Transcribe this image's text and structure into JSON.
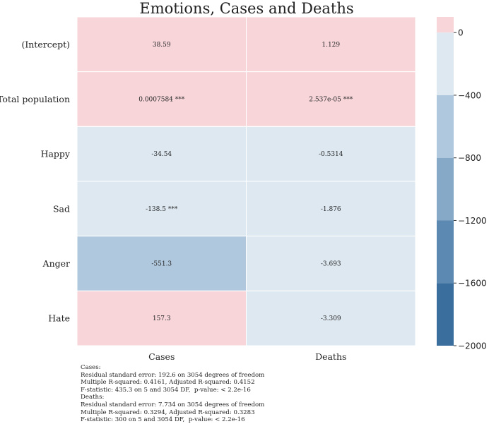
{
  "chart_data": {
    "type": "heatmap",
    "title": "Emotions, Cases and Deaths",
    "columns": [
      "Cases",
      "Deaths"
    ],
    "rows": [
      "(Intercept)",
      "Total population",
      "Happy",
      "Sad",
      "Anger",
      "Hate"
    ],
    "values": [
      [
        38.59,
        1.129
      ],
      [
        0.0007584,
        2.537e-05
      ],
      [
        -34.54,
        -0.5314
      ],
      [
        -138.5,
        -1.876
      ],
      [
        -551.3,
        -3.693
      ],
      [
        157.3,
        -3.309
      ]
    ],
    "labels": [
      [
        "38.59",
        "1.129"
      ],
      [
        "0.0007584 ***",
        "2.537e-05 ***"
      ],
      [
        "-34.54",
        "-0.5314"
      ],
      [
        "-138.5 ***",
        "-1.876"
      ],
      [
        "-551.3",
        "-3.693"
      ],
      [
        "157.3",
        "-3.309"
      ]
    ],
    "colorbar": {
      "range": [
        -2000,
        100
      ],
      "ticks": [
        0,
        -400,
        -800,
        -1200,
        -1600,
        -2000
      ],
      "tick_labels": [
        "0",
        "−400",
        "−800",
        "−1200",
        "−1600",
        "−2000"
      ],
      "bins": [
        {
          "from": 0,
          "to": 100,
          "color": "#f7d5d9"
        },
        {
          "from": -400,
          "to": 0,
          "color": "#dde8f1"
        },
        {
          "from": -800,
          "to": -400,
          "color": "#b0c8dd"
        },
        {
          "from": -1200,
          "to": -800,
          "color": "#86a9c7"
        },
        {
          "from": -1600,
          "to": -1200,
          "color": "#5c89b1"
        },
        {
          "from": -2000,
          "to": -1600,
          "color": "#3a6e9d"
        }
      ]
    }
  },
  "notes": [
    "Cases:",
    "Residual standard error: 192.6 on 3054 degrees of freedom",
    "Multiple R-squared: 0.4161, Adjusted R-squared: 0.4152",
    "F-statistic: 435.3 on 5 and 3054 DF,  p-value: < 2.2e-16",
    "Deaths:",
    "Residual standard error: 7.734 on 3054 degrees of freedom",
    "Multiple R-squared: 0.3294, Adjusted R-squared: 0.3283",
    "F-statistic: 300 on 5 and 3054 DF,  p-value: < 2.2e-16"
  ]
}
